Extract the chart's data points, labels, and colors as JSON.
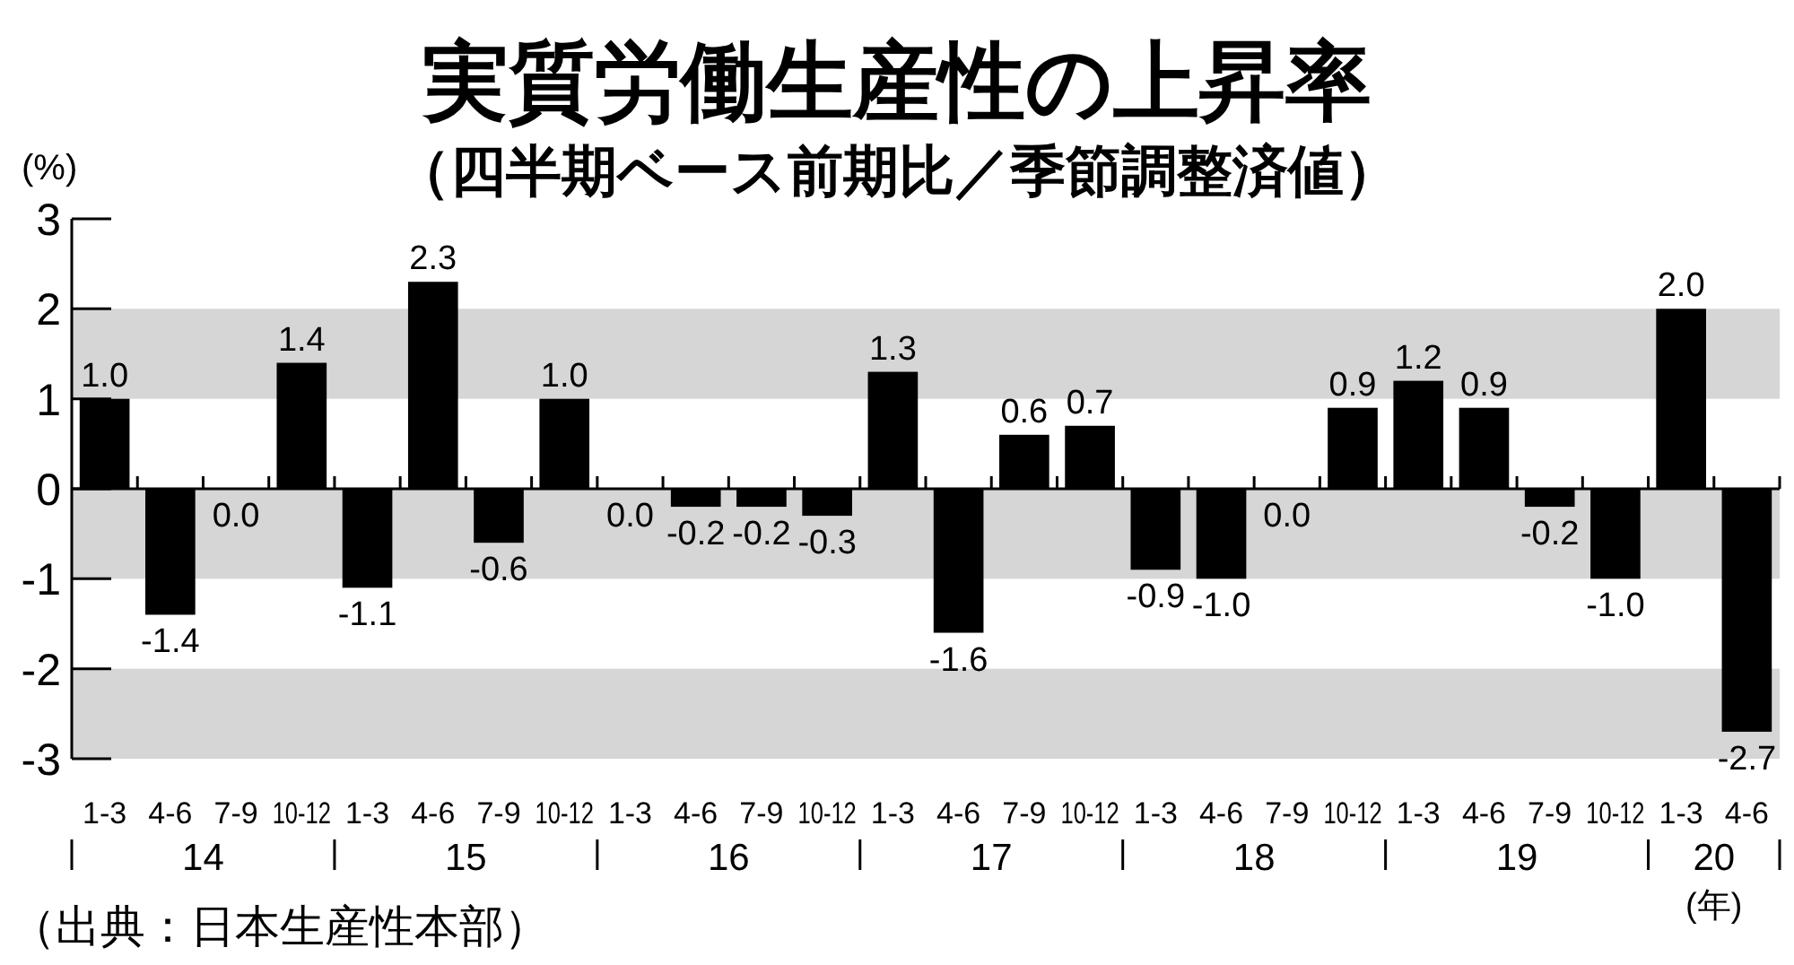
{
  "chart_data": {
    "type": "bar",
    "title": "実質労働生産性の上昇率",
    "subtitle": "（四半期ベース前期比／季節調整済値）",
    "ylabel": "(%)",
    "xlabel": "(年)",
    "categories": [
      "1-3",
      "4-6",
      "7-9",
      "10-12",
      "1-3",
      "4-6",
      "7-9",
      "10-12",
      "1-3",
      "4-6",
      "7-9",
      "10-12",
      "1-3",
      "4-6",
      "7-9",
      "10-12",
      "1-3",
      "4-6",
      "7-9",
      "10-12",
      "1-3",
      "4-6",
      "7-9",
      "10-12",
      "1-3",
      "4-6"
    ],
    "values": [
      1.0,
      -1.4,
      0.0,
      1.4,
      -1.1,
      2.3,
      -0.6,
      1.0,
      0.0,
      -0.2,
      -0.2,
      -0.3,
      1.3,
      -1.6,
      0.6,
      0.7,
      -0.9,
      -1.0,
      0.0,
      0.9,
      1.2,
      0.9,
      -0.2,
      -1.0,
      2.0,
      -2.7
    ],
    "value_labels": [
      "1.0",
      "-1.4",
      "0.0",
      "1.4",
      "-1.1",
      "2.3",
      "-0.6",
      "1.0",
      "0.0",
      "-0.2",
      "-0.2",
      "-0.3",
      "1.3",
      "-1.6",
      "0.6",
      "0.7",
      "-0.9",
      "-1.0",
      "0.0",
      "0.9",
      "1.2",
      "0.9",
      "-0.2",
      "-1.0",
      "2.0",
      "-2.7"
    ],
    "color": "#000000",
    "ylim": [
      -3,
      3
    ],
    "yticks": [
      -3,
      -2,
      -1,
      0,
      1,
      2,
      3
    ],
    "bands": [
      {
        "axis": "y",
        "from": 1,
        "to": 2,
        "color": "#d6d6d6"
      },
      {
        "axis": "y",
        "from": -1,
        "to": 0,
        "color": "#d6d6d6"
      },
      {
        "axis": "y",
        "from": -3,
        "to": -2,
        "color": "#d6d6d6"
      }
    ],
    "annotations": [
      "14",
      "15",
      "16",
      "17",
      "18",
      "19",
      "20",
      "（出典：日本生産性本部）"
    ]
  }
}
